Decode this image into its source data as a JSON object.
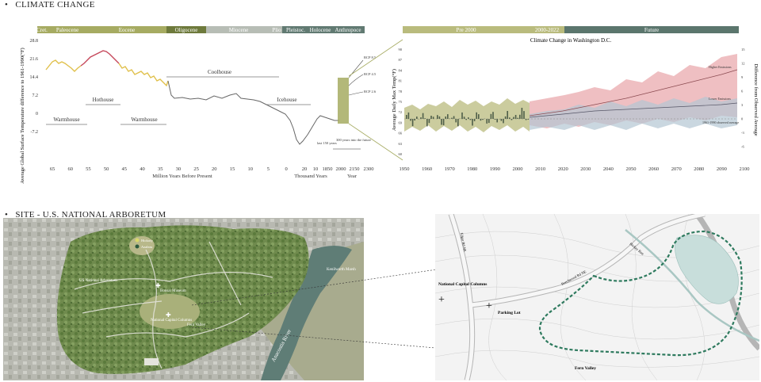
{
  "section1": {
    "bullet": "•",
    "title": "CLIMATE CHANGE"
  },
  "section2": {
    "bullet": "•",
    "title": "SITE - U.S. NATIONAL ARBORETUM"
  },
  "colors": {
    "epoch_olive": "#a6ab62",
    "epoch_dark": "#6e7a3c",
    "epoch_grey": "#b7bdb5",
    "epoch_slate": "#617a72",
    "band_olive": "#b9bb7d",
    "future_teal": "#5b766d",
    "warm_red": "#c5475a",
    "warm_yellow": "#e0c04b",
    "proj_red": "#e9a9ae",
    "proj_blue": "#b3c6d3",
    "trail_green": "#2e7a5e",
    "pond": "#c8dedb"
  },
  "paleo": {
    "epochs": [
      {
        "label": "Cret.",
        "color": "#a6ab62"
      },
      {
        "label": "Paleocene",
        "color": "#a6ab62"
      },
      {
        "label": "Eocene",
        "color": "#a6ab62"
      },
      {
        "label": "Oligocene",
        "color": "#6e7a3c"
      },
      {
        "label": "Miocene",
        "color": "#b7bdb5"
      },
      {
        "label": "Plio",
        "color": "#b7bdb5"
      },
      {
        "label": "Pleistoc.",
        "color": "#617a72"
      },
      {
        "label": "Holocene",
        "color": "#617a72"
      },
      {
        "label": "Anthropoce",
        "color": "#617a72"
      }
    ],
    "ylabel": "Average Global Surface Temperature difference to 1961-1990(°F)",
    "yticks": [
      "28.8",
      "21.6",
      "14.4",
      "7.2",
      "0",
      "-7.2"
    ],
    "xticks_my": [
      "65",
      "60",
      "55",
      "50",
      "45",
      "40",
      "35",
      "30",
      "25",
      "20",
      "15",
      "10",
      "5",
      "0"
    ],
    "xticks_ty": [
      "20",
      "10"
    ],
    "xticks_y": [
      "1850",
      "2000",
      "2150",
      "2300"
    ],
    "xlabel_my": "Million Years Before Present",
    "xlabel_ty": "Thousand Years",
    "xlabel_y": "Year",
    "annotations": {
      "warmhouse1": "Warmhouse",
      "hothouse": "Hothouse",
      "warmhouse2": "Warmhouse",
      "coolhouse": "Coolhouse",
      "icehouse": "Icehouse",
      "last150": "last 150 years",
      "next300": "300 years into the future",
      "rcp85": "RCP 8.5",
      "rcp45": "RCP 4.5",
      "rcp26": "RCP 2.6"
    }
  },
  "dc": {
    "periods": [
      {
        "label": "Pre 2000"
      },
      {
        "label": "2000-2022"
      },
      {
        "label": "Future"
      }
    ],
    "title": "Climate Change in Washington D.C.",
    "ylabel_left": "Average Daily Max Temp(°F)",
    "ylabel_right": "Difference from Observed Average",
    "yticks_left": [
      "90",
      "87",
      "84",
      "81",
      "78",
      "75",
      "72",
      "69",
      "66",
      "63",
      "60"
    ],
    "yticks_right": [
      "15",
      "12",
      "9",
      "6",
      "3",
      "0",
      "-3",
      "-6"
    ],
    "xticks": [
      "1950",
      "1960",
      "1970",
      "1980",
      "1990",
      "2000",
      "2010",
      "2020",
      "2030",
      "2040",
      "2050",
      "2060",
      "2070",
      "2080",
      "2090",
      "2100"
    ],
    "higher_label": "Higher Emissions",
    "lower_label": "Lower Emissions",
    "baseline_label": "1961-1990 observed average"
  },
  "map": {
    "labels": {
      "us_arboretum": "US National Arboretum",
      "bonsai": "Bonsai Museum",
      "capital_columns": "National Capital Columns",
      "fern_valley": "Fern Valley",
      "kenilworth": "Kenilworth Marsh",
      "anacostia": "Anacostia River",
      "legend1": "Hickory",
      "legend2": "Azaleas",
      "map_icon": "✚"
    }
  },
  "detail": {
    "labels": {
      "columns": "National Capital Columns",
      "parking": "Parking Lot",
      "fern": "Fern Valley",
      "hickey": "Hickey Run",
      "edgar": "Edgar Rd NE",
      "beechwood": "Beechwood Rd NE",
      "plus": "+"
    }
  }
}
